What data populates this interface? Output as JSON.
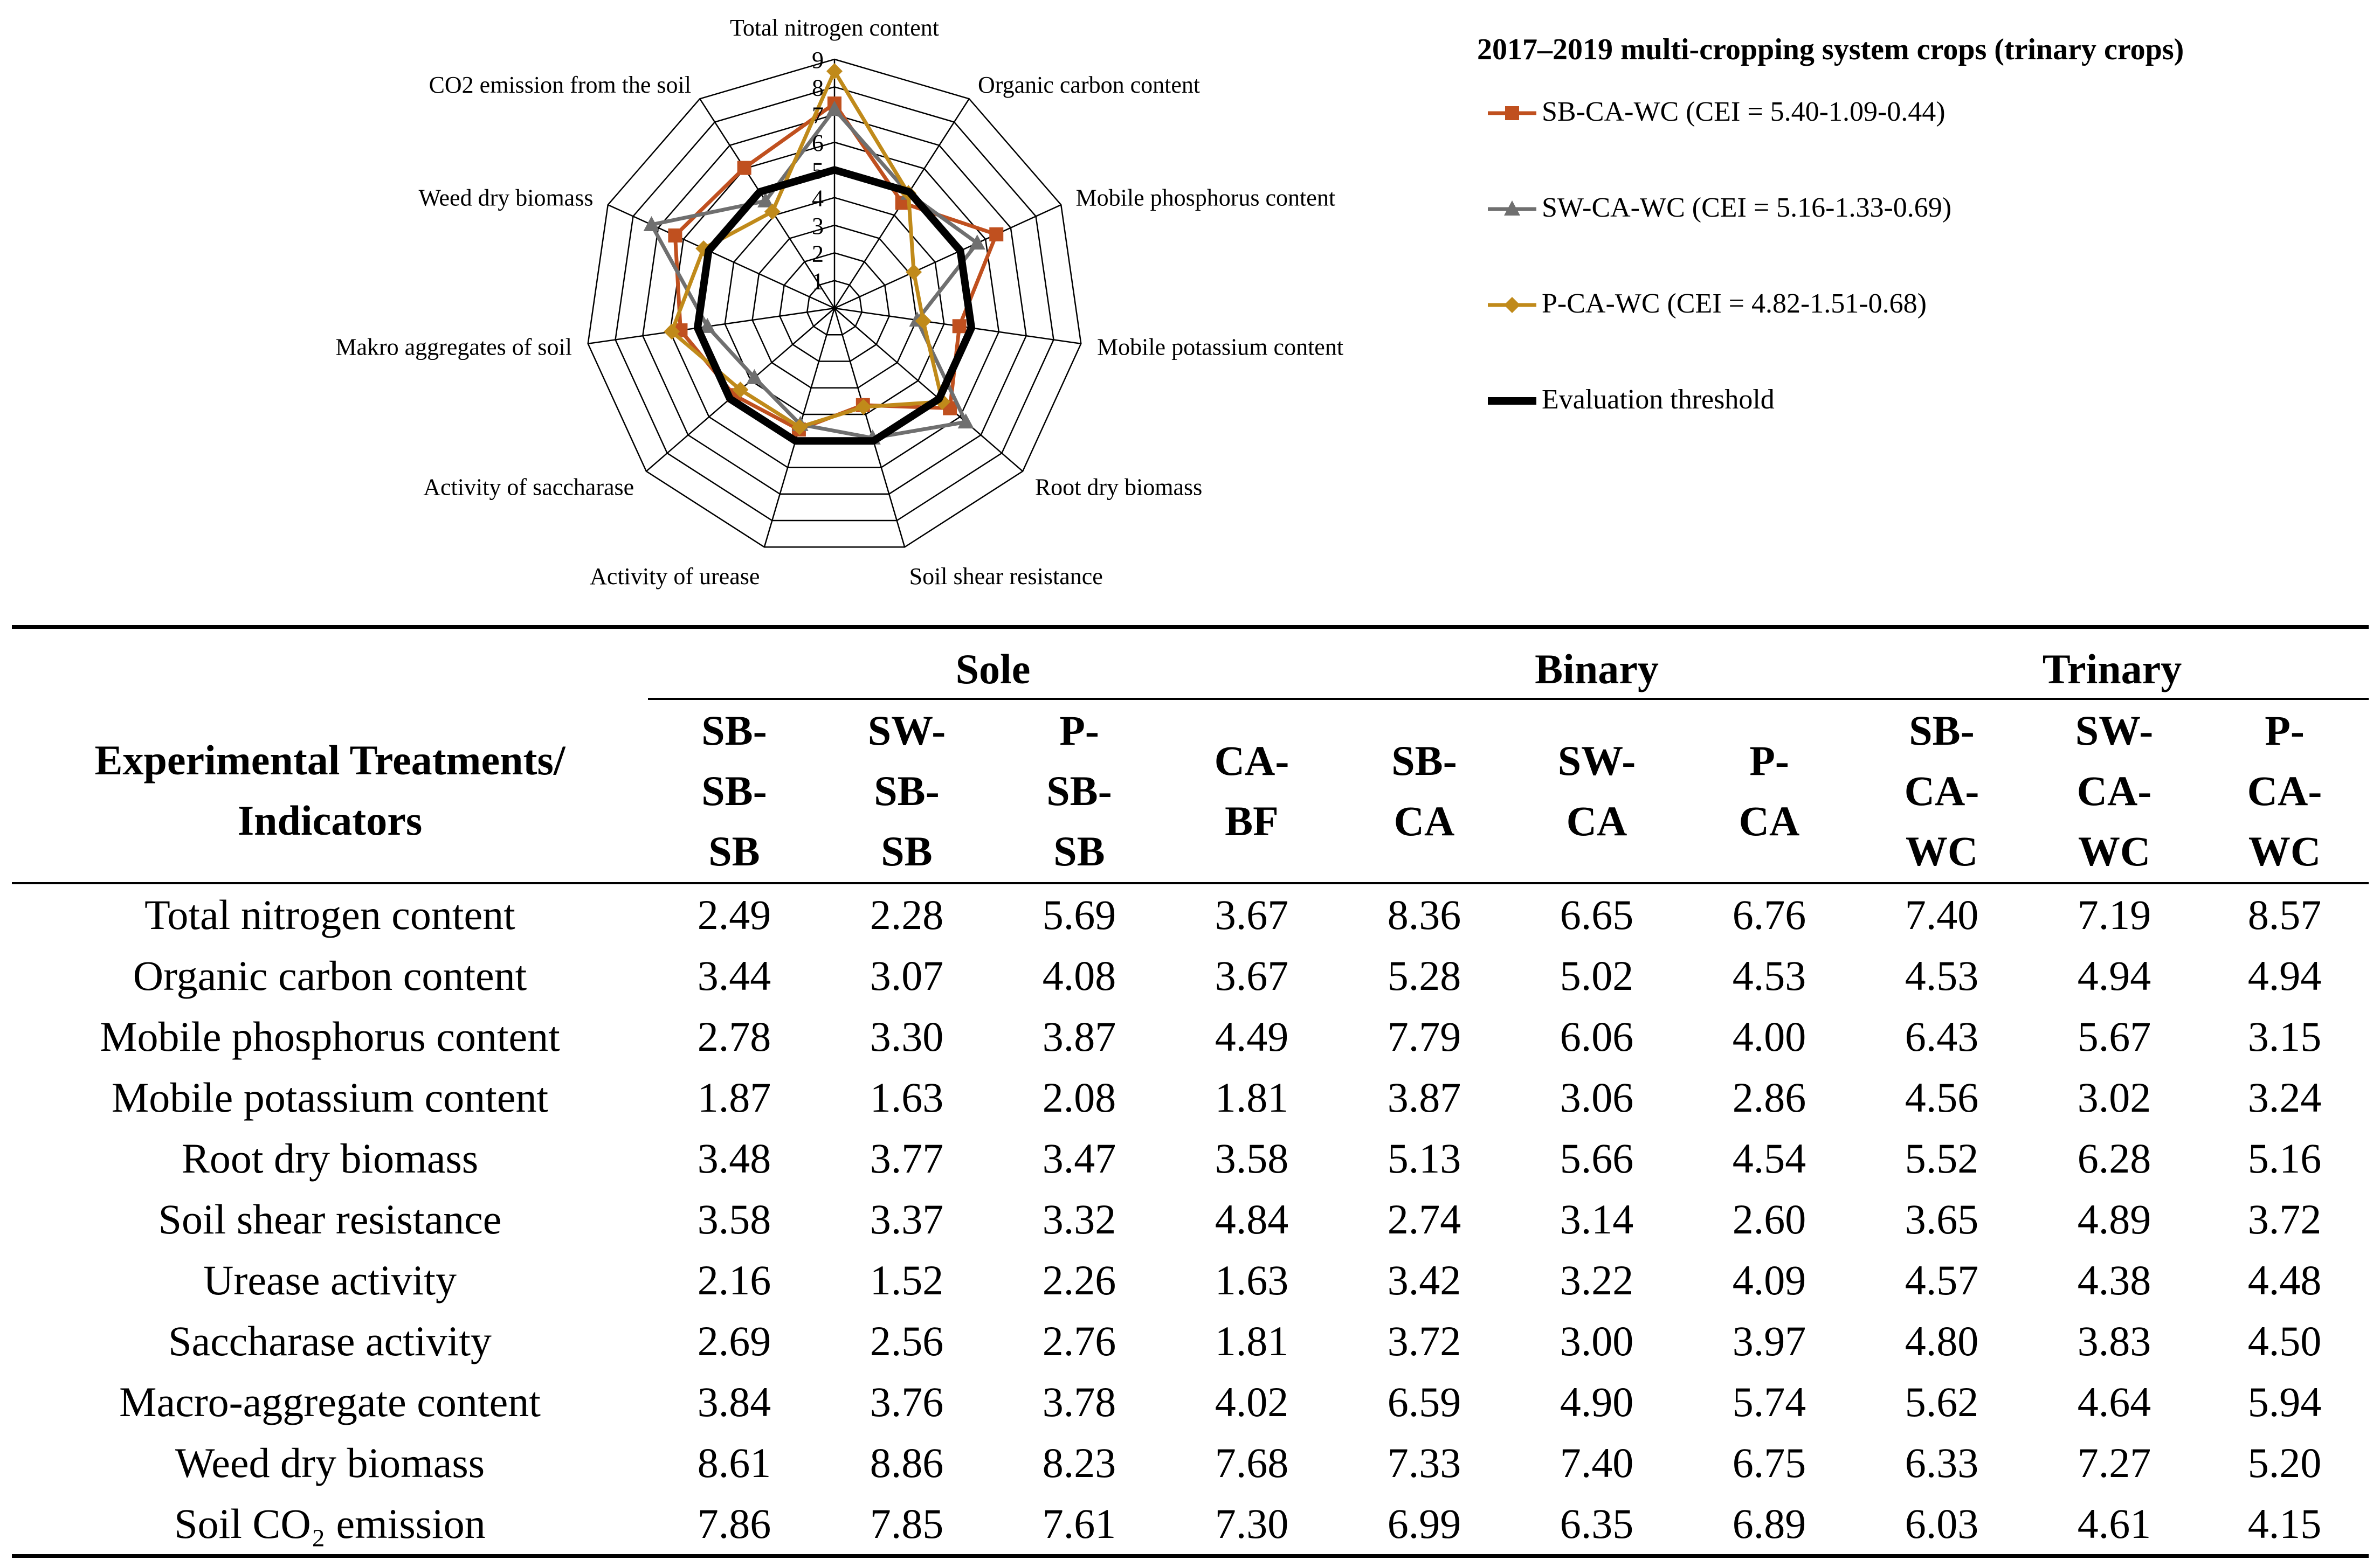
{
  "chart_data": {
    "type": "radar",
    "axes": [
      "Total nitrogen content",
      "Organic carbon content",
      "Mobile phosphorus content",
      "Mobile potassium content",
      "Root dry biomass",
      "Soil shear resistance",
      "Activity of urease",
      "Activity of saccharase",
      "Makro aggregates of soil",
      "Weed dry biomass",
      "CO2 emission from the soil"
    ],
    "rmax": 9,
    "ticks": [
      "1",
      "2",
      "3",
      "4",
      "5",
      "6",
      "7",
      "8",
      "9"
    ],
    "legend_title": "2017–2019 multi-cropping system crops (trinary crops)",
    "series": [
      {
        "name": "SB-CA-WC (CEI = 5.40-1.09-0.44)",
        "color": "#c0501f",
        "marker": "square",
        "values": [
          7.4,
          4.53,
          6.43,
          4.56,
          5.52,
          3.65,
          4.57,
          4.8,
          5.62,
          6.33,
          6.03
        ]
      },
      {
        "name": "SW-CA-WC (CEI = 5.16-1.33-0.69)",
        "color": "#6f6f6f",
        "marker": "triangle",
        "values": [
          7.19,
          4.94,
          5.67,
          3.02,
          6.28,
          4.89,
          4.38,
          3.83,
          4.64,
          7.27,
          4.61
        ]
      },
      {
        "name": "P-CA-WC (CEI = 4.82-1.51-0.68)",
        "color": "#c08a1a",
        "marker": "diamond",
        "values": [
          8.57,
          4.94,
          3.15,
          3.24,
          5.16,
          3.72,
          4.48,
          4.5,
          5.94,
          5.2,
          4.15
        ]
      },
      {
        "name": "Evaluation threshold",
        "color": "#000000",
        "marker": "none",
        "width": 14,
        "values": [
          5,
          5,
          5,
          5,
          5,
          5,
          5,
          5,
          5,
          5,
          5
        ]
      }
    ]
  },
  "table": {
    "corner": [
      "Experimental Treatments/",
      "Indicators"
    ],
    "groups": [
      "Sole",
      "Binary",
      "Trinary"
    ],
    "columns": [
      [
        "SB-",
        "SB-",
        "SB"
      ],
      [
        "SW-",
        "SB-",
        "SB"
      ],
      [
        "P-",
        "SB-",
        "SB"
      ],
      [
        "CA-",
        "BF"
      ],
      [
        "SB-",
        "CA"
      ],
      [
        "SW-",
        "CA"
      ],
      [
        "P-",
        "CA"
      ],
      [
        "SB-",
        "CA-",
        "WC"
      ],
      [
        "SW-",
        "CA-",
        "WC"
      ],
      [
        "P-",
        "CA-",
        "WC"
      ]
    ],
    "rows": [
      {
        "label": "Total nitrogen content",
        "values": [
          "2.49",
          "2.28",
          "5.69",
          "3.67",
          "8.36",
          "6.65",
          "6.76",
          "7.40",
          "7.19",
          "8.57"
        ]
      },
      {
        "label": "Organic carbon content",
        "values": [
          "3.44",
          "3.07",
          "4.08",
          "3.67",
          "5.28",
          "5.02",
          "4.53",
          "4.53",
          "4.94",
          "4.94"
        ]
      },
      {
        "label": "Mobile phosphorus content",
        "values": [
          "2.78",
          "3.30",
          "3.87",
          "4.49",
          "7.79",
          "6.06",
          "4.00",
          "6.43",
          "5.67",
          "3.15"
        ]
      },
      {
        "label": "Mobile potassium content",
        "values": [
          "1.87",
          "1.63",
          "2.08",
          "1.81",
          "3.87",
          "3.06",
          "2.86",
          "4.56",
          "3.02",
          "3.24"
        ]
      },
      {
        "label": "Root dry biomass",
        "values": [
          "3.48",
          "3.77",
          "3.47",
          "3.58",
          "5.13",
          "5.66",
          "4.54",
          "5.52",
          "6.28",
          "5.16"
        ]
      },
      {
        "label": "Soil shear resistance",
        "values": [
          "3.58",
          "3.37",
          "3.32",
          "4.84",
          "2.74",
          "3.14",
          "2.60",
          "3.65",
          "4.89",
          "3.72"
        ]
      },
      {
        "label": "Urease activity",
        "values": [
          "2.16",
          "1.52",
          "2.26",
          "1.63",
          "3.42",
          "3.22",
          "4.09",
          "4.57",
          "4.38",
          "4.48"
        ]
      },
      {
        "label": "Saccharase activity",
        "values": [
          "2.69",
          "2.56",
          "2.76",
          "1.81",
          "3.72",
          "3.00",
          "3.97",
          "4.80",
          "3.83",
          "4.50"
        ]
      },
      {
        "label": "Macro-aggregate content",
        "values": [
          "3.84",
          "3.76",
          "3.78",
          "4.02",
          "6.59",
          "4.90",
          "5.74",
          "5.62",
          "4.64",
          "5.94"
        ]
      },
      {
        "label": "Weed dry biomass",
        "values": [
          "8.61",
          "8.86",
          "8.23",
          "7.68",
          "7.33",
          "7.40",
          "6.75",
          "6.33",
          "7.27",
          "5.20"
        ]
      },
      {
        "label": "Soil CO₂ emission",
        "values": [
          "7.86",
          "7.85",
          "7.61",
          "7.30",
          "6.99",
          "6.35",
          "6.89",
          "6.03",
          "4.61",
          "4.15"
        ]
      }
    ]
  }
}
